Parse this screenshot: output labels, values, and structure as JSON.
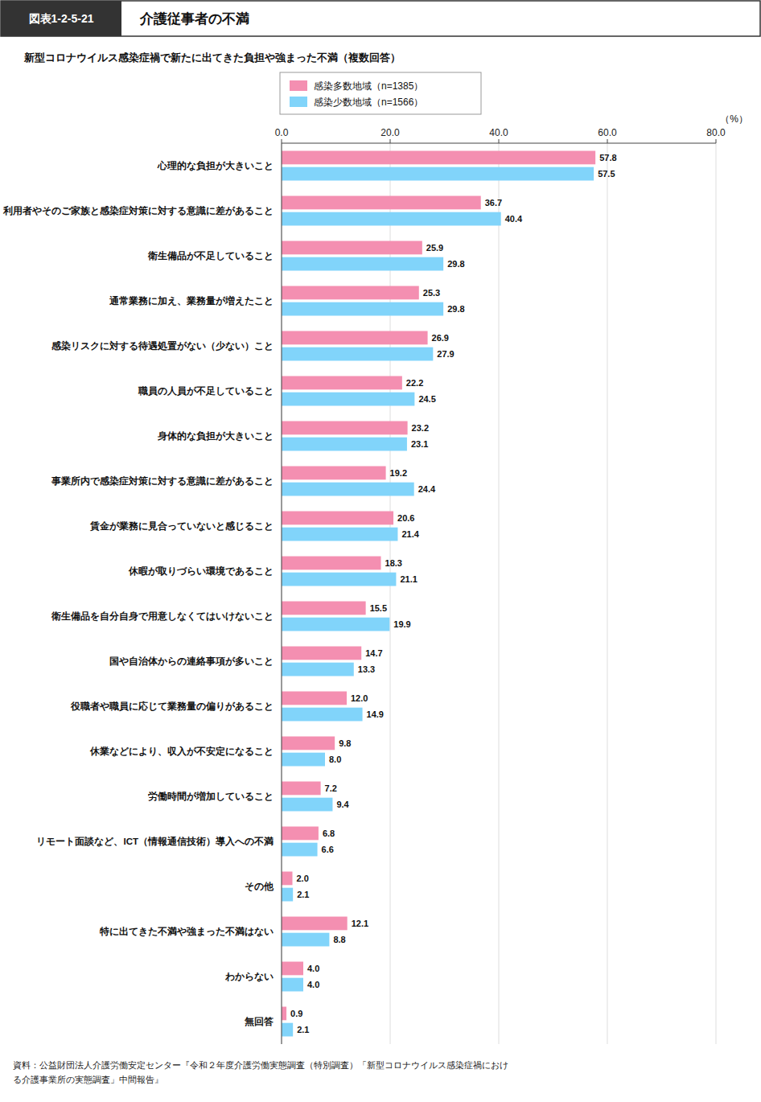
{
  "chart_data": {
    "type": "bar",
    "orientation": "horizontal",
    "figure_label": "図表1-2-5-21",
    "title": "介護従事者の不満",
    "subtitle": "新型コロナウイルス感染症禍で新たに出てきた負担や強まった不満（複数回答）",
    "xlabel": "（%）",
    "source": [
      "資料：公益財団法人介護労働安定センター『令和２年度介護労働実態調査（特別調査）「新型コロナウイルス感染症禍におけ",
      "る介護事業所の実態調査」中間報告』"
    ],
    "categories": [
      "心理的な負担が大きいこと",
      "利用者やそのご家族と感染症対策に対する意識に差があること",
      "衛生備品が不足していること",
      "通常業務に加え、業務量が増えたこと",
      "感染リスクに対する待遇処置がない（少ない）こと",
      "職員の人員が不足していること",
      "身体的な負担が大きいこと",
      "事業所内で感染症対策に対する意識に差があること",
      "賃金が業務に見合っていないと感じること",
      "休暇が取りづらい環境であること",
      "衛生備品を自分自身で用意しなくてはいけないこと",
      "国や自治体からの連絡事項が多いこと",
      "役職者や職員に応じて業務量の偏りがあること",
      "休業などにより、収入が不安定になること",
      "労働時間が増加していること",
      "リモート面談など、ICT（情報通信技術）導入への不満",
      "その他",
      "特に出てきた不満や強まった不満はない",
      "わからない",
      "無回答"
    ],
    "series": [
      {
        "name": "感染多数地域（n=1385）",
        "color": "#F48FB1",
        "values": [
          57.8,
          36.7,
          25.9,
          25.3,
          26.9,
          22.2,
          23.2,
          19.2,
          20.6,
          18.3,
          15.5,
          14.7,
          12.0,
          9.8,
          7.2,
          6.8,
          2.0,
          12.1,
          4.0,
          0.9
        ],
        "value_labels": [
          "57.8",
          "36.7",
          "25.9",
          "25.3",
          "26.9",
          "22.2",
          "23.2",
          "19.2",
          "20.6",
          "18.3",
          "15.5",
          "14.7",
          "12.0",
          "9.8",
          "7.2",
          "6.8",
          "2.0",
          "12.1",
          "4.0",
          "0.9"
        ]
      },
      {
        "name": "感染少数地域（n=1566）",
        "color": "#81D4FA",
        "values": [
          57.5,
          40.4,
          29.8,
          29.8,
          27.9,
          24.5,
          23.1,
          24.4,
          21.4,
          21.1,
          19.9,
          13.3,
          14.9,
          8.0,
          9.4,
          6.6,
          2.1,
          8.8,
          4.0,
          2.1
        ],
        "value_labels": [
          "57.5",
          "40.4",
          "29.8",
          "29.8",
          "27.9",
          "24.5",
          "23.1",
          "24.4",
          "21.4",
          "21.1",
          "19.9",
          "13.3",
          "14.9",
          "8.0",
          "9.4",
          "6.6",
          "2.1",
          "8.8",
          "4.0",
          "2.1"
        ]
      }
    ],
    "xlim": [
      0,
      80
    ],
    "xticks": [
      {
        "value": 0,
        "label": "0.0"
      },
      {
        "value": 20,
        "label": "20.0"
      },
      {
        "value": 40,
        "label": "40.0"
      },
      {
        "value": 60,
        "label": "60.0"
      },
      {
        "value": 80,
        "label": "80.0"
      }
    ],
    "grid": true,
    "data_labels": true,
    "legend": "top"
  }
}
